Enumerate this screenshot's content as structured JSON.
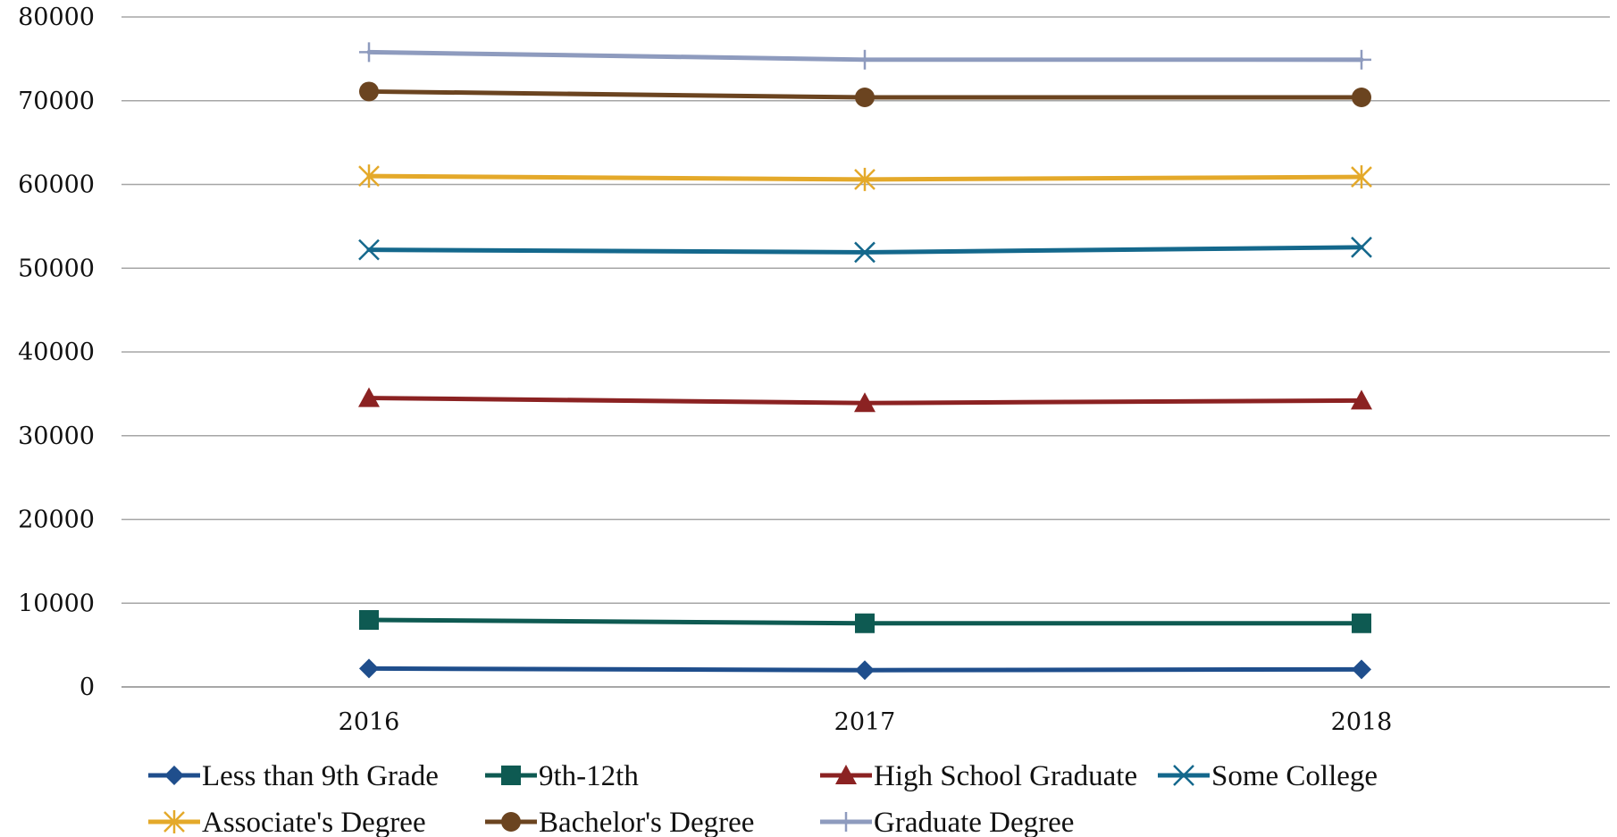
{
  "chart_data": {
    "type": "line",
    "title": "",
    "xlabel": "",
    "ylabel": "",
    "categories": [
      "2016",
      "2017",
      "2018"
    ],
    "ylim": [
      0,
      80000
    ],
    "yticks": [
      0,
      10000,
      20000,
      30000,
      40000,
      50000,
      60000,
      70000,
      80000
    ],
    "grid": "horizontal",
    "legend_position": "bottom",
    "series": [
      {
        "name": "Less than 9th Grade",
        "values": [
          2200,
          2000,
          2100
        ],
        "color": "#1F4E8C",
        "marker": "diamond"
      },
      {
        "name": "9th-12th",
        "values": [
          8000,
          7600,
          7600
        ],
        "color": "#0E5A52",
        "marker": "square"
      },
      {
        "name": "High School Graduate",
        "values": [
          34500,
          33900,
          34200
        ],
        "color": "#8B2222",
        "marker": "triangle"
      },
      {
        "name": "Some College",
        "values": [
          52200,
          51900,
          52500
        ],
        "color": "#14688C",
        "marker": "x"
      },
      {
        "name": "Associate's Degree",
        "values": [
          61000,
          60600,
          60900
        ],
        "color": "#E4A92A",
        "marker": "star"
      },
      {
        "name": "Bachelor's Degree",
        "values": [
          71100,
          70400,
          70400
        ],
        "color": "#6B4420",
        "marker": "circle"
      },
      {
        "name": "Graduate Degree",
        "values": [
          75800,
          74900,
          74900
        ],
        "color": "#8E9BBE",
        "marker": "plus"
      }
    ]
  }
}
